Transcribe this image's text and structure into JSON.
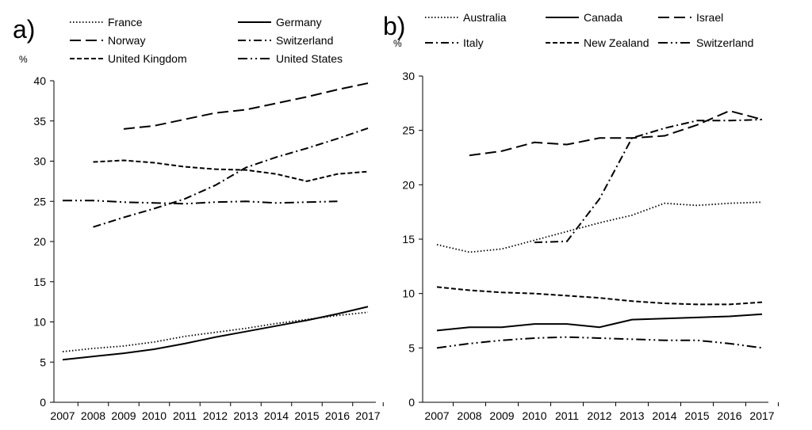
{
  "chart_data": [
    {
      "panel_label": "a)",
      "type": "line",
      "unit_label": "%",
      "x": [
        2007,
        2008,
        2009,
        2010,
        2011,
        2012,
        2013,
        2014,
        2015,
        2016,
        2017
      ],
      "ylim": [
        0,
        40
      ],
      "yticks": [
        0,
        5,
        10,
        15,
        20,
        25,
        30,
        35,
        40
      ],
      "series": [
        {
          "name": "France",
          "style": "dotted",
          "values": [
            6.3,
            6.7,
            7.0,
            7.5,
            8.2,
            8.7,
            9.2,
            9.8,
            10.3,
            10.8,
            11.2
          ]
        },
        {
          "name": "Germany",
          "style": "solid",
          "values": [
            5.3,
            5.7,
            6.1,
            6.6,
            7.3,
            8.1,
            8.8,
            9.5,
            10.2,
            11.0,
            11.9
          ]
        },
        {
          "name": "Norway",
          "style": "longdash",
          "values": [
            null,
            null,
            34.0,
            34.4,
            35.2,
            36.0,
            36.4,
            37.2,
            38.0,
            38.9,
            39.7
          ]
        },
        {
          "name": "Switzerland",
          "style": "dashdot",
          "values": [
            null,
            21.8,
            23.0,
            24.1,
            25.3,
            27.0,
            29.2,
            30.5,
            31.6,
            32.8,
            34.1
          ]
        },
        {
          "name": "United Kingdom",
          "style": "shortdash",
          "values": [
            null,
            29.9,
            30.1,
            29.8,
            29.3,
            29.0,
            28.9,
            28.4,
            27.5,
            28.4,
            28.7
          ]
        },
        {
          "name": "United States",
          "style": "dashdotdot",
          "values": [
            25.1,
            25.1,
            24.9,
            24.8,
            24.7,
            24.9,
            25.0,
            24.8,
            24.9,
            25.0,
            null
          ]
        }
      ]
    },
    {
      "panel_label": "b)",
      "type": "line",
      "unit_label": "%",
      "x": [
        2007,
        2008,
        2009,
        2010,
        2011,
        2012,
        2013,
        2014,
        2015,
        2016,
        2017
      ],
      "ylim": [
        0,
        30
      ],
      "yticks": [
        0,
        5,
        10,
        15,
        20,
        25,
        30
      ],
      "series": [
        {
          "name": "Australia",
          "style": "dotted",
          "values": [
            14.5,
            13.8,
            14.1,
            14.9,
            15.7,
            16.5,
            17.2,
            18.3,
            18.1,
            18.3,
            18.4
          ]
        },
        {
          "name": "Canada",
          "style": "solid",
          "values": [
            6.6,
            6.9,
            6.9,
            7.2,
            7.2,
            6.9,
            7.6,
            7.7,
            7.8,
            7.9,
            8.1
          ]
        },
        {
          "name": "Israel",
          "style": "longdash",
          "values": [
            null,
            22.7,
            23.1,
            23.9,
            23.7,
            24.3,
            24.3,
            24.5,
            25.5,
            26.8,
            26.0
          ]
        },
        {
          "name": "Italy",
          "style": "dashdot",
          "values": [
            null,
            null,
            null,
            14.7,
            14.8,
            18.7,
            24.3,
            25.2,
            25.9,
            25.9,
            26.0
          ]
        },
        {
          "name": "New Zealand",
          "style": "shortdash",
          "values": [
            10.6,
            10.3,
            10.1,
            10.0,
            9.8,
            9.6,
            9.3,
            9.1,
            9.0,
            9.0,
            9.2
          ]
        },
        {
          "name": "Switzerland",
          "style": "dashdotdot",
          "values": [
            5.0,
            5.4,
            5.7,
            5.9,
            6.0,
            5.9,
            5.8,
            5.7,
            5.7,
            5.4,
            5.0
          ]
        }
      ]
    }
  ]
}
